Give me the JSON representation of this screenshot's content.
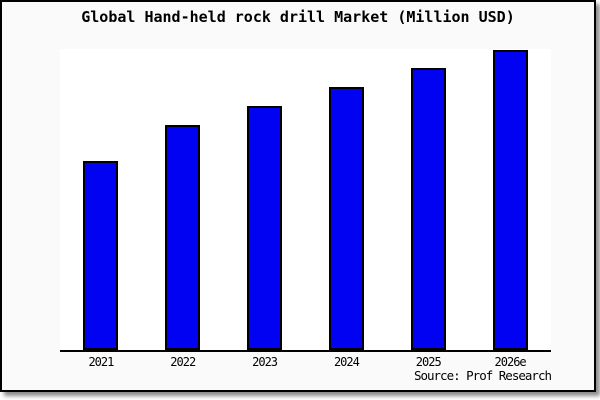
{
  "page": {
    "background": "#ffffff",
    "card_background": "#fafafa",
    "border_color": "#000000",
    "plot_background": "#ffffff"
  },
  "chart_data": {
    "type": "bar",
    "title": "Global Hand-held rock drill Market (Million USD)",
    "categories": [
      "2021",
      "2022",
      "2023",
      "2024",
      "2025",
      "2026e"
    ],
    "values": [
      63,
      75,
      81.5,
      87.5,
      94,
      100
    ],
    "values_note": "relative index estimated from bar heights; no y-axis tick labels are shown; 2026e bar = 100",
    "xlabel": "",
    "ylabel": "",
    "ylim": [
      0,
      100.5
    ],
    "grid": false,
    "legend": null,
    "bar_color": "#0202f2",
    "bar_border_color": "#000000",
    "axis_color": "#000000"
  },
  "footer": {
    "source_label": "Source: Prof Research"
  }
}
